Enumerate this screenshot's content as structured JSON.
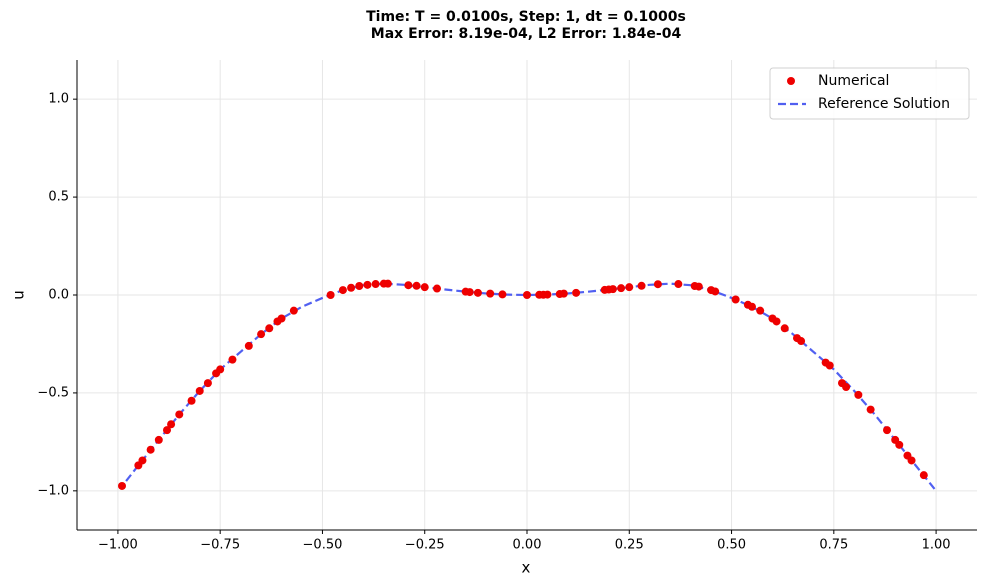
{
  "chart_data": {
    "type": "scatter+line",
    "title": "Time: T = 0.0100s, Step: 1, dt = 0.1000s",
    "subtitle": "Max Error: 8.19e-04, L2 Error: 1.84e-04",
    "x_label": "x",
    "y_label": "u",
    "xlim": [
      -1.1,
      1.1
    ],
    "ylim": [
      -1.2,
      1.2
    ],
    "xticks": [
      {
        "value": -1,
        "label": "−1.00"
      },
      {
        "value": -0.75,
        "label": "−0.75"
      },
      {
        "value": -0.5,
        "label": "−0.50"
      },
      {
        "value": -0.25,
        "label": "−0.25"
      },
      {
        "value": 0,
        "label": "0.00"
      },
      {
        "value": 0.25,
        "label": "0.25"
      },
      {
        "value": 0.5,
        "label": "0.50"
      },
      {
        "value": 0.75,
        "label": "0.75"
      },
      {
        "value": 1,
        "label": "1.00"
      }
    ],
    "yticks": [
      {
        "value": -1,
        "label": "−1.0"
      },
      {
        "value": -0.5,
        "label": "−0.5"
      },
      {
        "value": 0,
        "label": "0.0"
      },
      {
        "value": 0.5,
        "label": "0.5"
      },
      {
        "value": 1,
        "label": "1.0"
      }
    ],
    "grid": true,
    "legend": "upper right",
    "series": [
      {
        "name": "Numerical",
        "kind": "scatter",
        "color": "#ee0000",
        "x": [
          -0.99,
          -0.95,
          -0.94,
          -0.92,
          -0.9,
          -0.88,
          -0.87,
          -0.85,
          -0.82,
          -0.8,
          -0.78,
          -0.76,
          -0.75,
          -0.72,
          -0.68,
          -0.65,
          -0.63,
          -0.61,
          -0.6,
          -0.57,
          -0.48,
          -0.45,
          -0.43,
          -0.41,
          -0.39,
          -0.37,
          -0.35,
          -0.34,
          -0.29,
          -0.27,
          -0.25,
          -0.22,
          -0.15,
          -0.14,
          -0.12,
          -0.09,
          -0.06,
          0,
          0.03,
          0.04,
          0.05,
          0.08,
          0.09,
          0.12,
          0.19,
          0.2,
          0.21,
          0.23,
          0.25,
          0.28,
          0.32,
          0.37,
          0.41,
          0.42,
          0.45,
          0.46,
          0.51,
          0.54,
          0.55,
          0.57,
          0.6,
          0.61,
          0.63,
          0.66,
          0.67,
          0.73,
          0.74,
          0.77,
          0.78,
          0.81,
          0.84,
          0.88,
          0.9,
          0.91,
          0.93,
          0.94,
          0.97
        ],
        "values": [
          -0.975,
          -0.87,
          -0.845,
          -0.79,
          -0.74,
          -0.69,
          -0.66,
          -0.61,
          -0.54,
          -0.49,
          -0.45,
          -0.4,
          -0.38,
          -0.33,
          -0.26,
          -0.2,
          -0.17,
          -0.135,
          -0.12,
          -0.08,
          0.0,
          0.025,
          0.037,
          0.046,
          0.052,
          0.056,
          0.058,
          0.058,
          0.05,
          0.047,
          0.04,
          0.033,
          0.017,
          0.015,
          0.011,
          0.007,
          0.003,
          0,
          0.001,
          0.001,
          0.002,
          0.005,
          0.007,
          0.011,
          0.026,
          0.028,
          0.03,
          0.035,
          0.04,
          0.047,
          0.055,
          0.056,
          0.046,
          0.043,
          0.025,
          0.018,
          -0.023,
          -0.05,
          -0.06,
          -0.08,
          -0.12,
          -0.135,
          -0.17,
          -0.22,
          -0.235,
          -0.345,
          -0.36,
          -0.45,
          -0.47,
          -0.51,
          -0.585,
          -0.69,
          -0.74,
          -0.765,
          -0.82,
          -0.845,
          -0.92
        ]
      },
      {
        "name": "Reference Solution",
        "kind": "line",
        "color": "#3344ee",
        "x": [
          -0.98,
          -0.95,
          -0.9,
          -0.85,
          -0.8,
          -0.75,
          -0.7,
          -0.65,
          -0.6,
          -0.55,
          -0.5,
          -0.45,
          -0.4,
          -0.35,
          -0.3,
          -0.25,
          -0.2,
          -0.15,
          -0.1,
          -0.05,
          0,
          0.05,
          0.1,
          0.15,
          0.2,
          0.25,
          0.3,
          0.35,
          0.4,
          0.45,
          0.5,
          0.55,
          0.6,
          0.65,
          0.7,
          0.75,
          0.8,
          0.85,
          0.9,
          0.95,
          1.0
        ],
        "values": [
          -0.95,
          -0.87,
          -0.74,
          -0.61,
          -0.49,
          -0.38,
          -0.29,
          -0.2,
          -0.12,
          -0.06,
          -0.015,
          0.025,
          0.05,
          0.058,
          0.052,
          0.04,
          0.028,
          0.017,
          0.008,
          0.002,
          0,
          0.002,
          0.008,
          0.017,
          0.028,
          0.04,
          0.052,
          0.058,
          0.05,
          0.025,
          -0.015,
          -0.06,
          -0.12,
          -0.2,
          -0.29,
          -0.38,
          -0.49,
          -0.61,
          -0.74,
          -0.87,
          -1.0
        ]
      }
    ]
  }
}
